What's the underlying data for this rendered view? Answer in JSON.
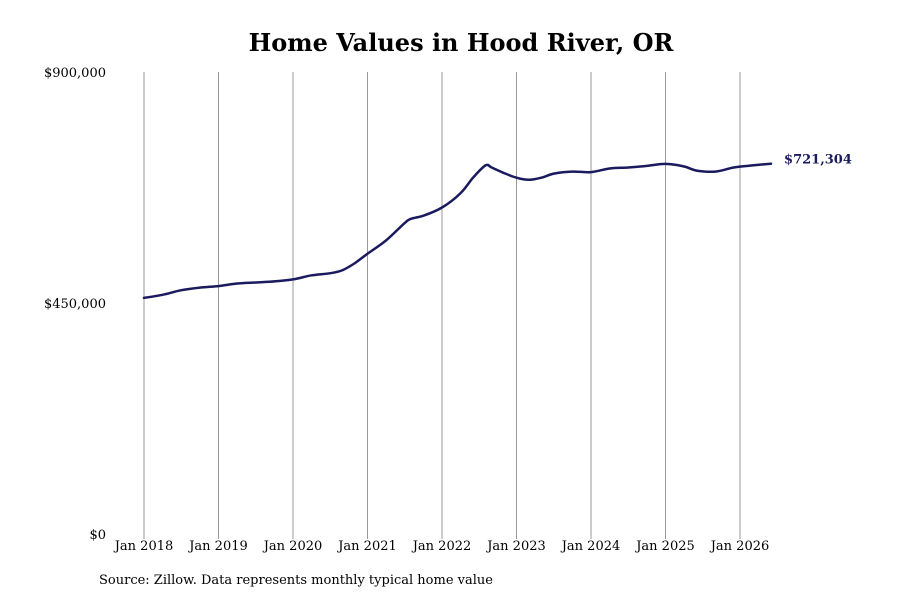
{
  "chart_data": {
    "type": "line",
    "title": "Home Values in Hood River, OR",
    "xlabel": "",
    "ylabel": "",
    "ylim": [
      0,
      900000
    ],
    "y_ticks": [
      {
        "value": 0,
        "label": "$0"
      },
      {
        "value": 450000,
        "label": "$450,000"
      },
      {
        "value": 900000,
        "label": "$900,000"
      }
    ],
    "x_ticks": [
      "Jan 2018",
      "Jan 2019",
      "Jan 2020",
      "Jan 2021",
      "Jan 2022",
      "Jan 2023",
      "Jan 2024",
      "Jan 2025",
      "Jan 2026"
    ],
    "grid": "vertical",
    "series": [
      {
        "color": "#1a1a5e",
        "end_label": "$721,304",
        "points": [
          [
            "2018-01",
            460000
          ],
          [
            "2018-04",
            466000
          ],
          [
            "2018-07",
            475000
          ],
          [
            "2018-10",
            480000
          ],
          [
            "2019-01",
            483000
          ],
          [
            "2019-04",
            488000
          ],
          [
            "2019-07",
            490000
          ],
          [
            "2019-10",
            492000
          ],
          [
            "2020-01",
            496000
          ],
          [
            "2020-04",
            504000
          ],
          [
            "2020-07",
            508000
          ],
          [
            "2020-09",
            514000
          ],
          [
            "2020-11",
            528000
          ],
          [
            "2021-01",
            546000
          ],
          [
            "2021-04",
            572000
          ],
          [
            "2021-07",
            606000
          ],
          [
            "2021-08",
            614000
          ],
          [
            "2021-10",
            620000
          ],
          [
            "2022-01",
            636000
          ],
          [
            "2022-04",
            664000
          ],
          [
            "2022-06",
            694000
          ],
          [
            "2022-08",
            718000
          ],
          [
            "2022-09",
            714000
          ],
          [
            "2022-11",
            703000
          ],
          [
            "2023-01",
            694000
          ],
          [
            "2023-03",
            690000
          ],
          [
            "2023-05",
            694000
          ],
          [
            "2023-07",
            702000
          ],
          [
            "2023-10",
            706000
          ],
          [
            "2024-01",
            705000
          ],
          [
            "2024-04",
            712000
          ],
          [
            "2024-07",
            714000
          ],
          [
            "2024-10",
            717000
          ],
          [
            "2025-01",
            721000
          ],
          [
            "2025-04",
            716000
          ],
          [
            "2025-06",
            708000
          ],
          [
            "2025-09",
            706000
          ],
          [
            "2025-12",
            714000
          ],
          [
            "2026-03",
            718000
          ],
          [
            "2026-06",
            721304
          ]
        ]
      }
    ]
  },
  "source": "Source: Zillow. Data represents monthly typical home value"
}
